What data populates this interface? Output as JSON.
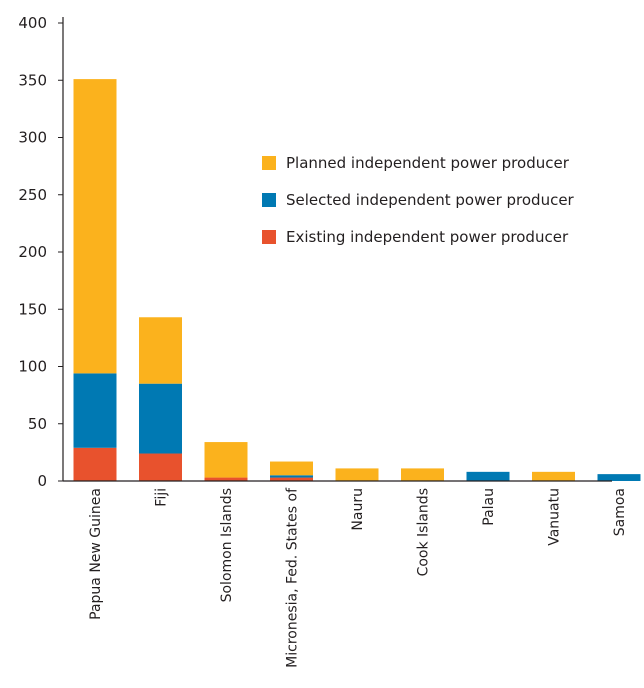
{
  "chart_data": {
    "type": "bar",
    "stacked": true,
    "categories": [
      "Papua New Guinea",
      "Fiji",
      "Solomon Islands",
      "Micronesia, Fed. States of",
      "Nauru",
      "Cook Islands",
      "Palau",
      "Vanuatu",
      "Samoa"
    ],
    "series": [
      {
        "name": "Existing independent power producer",
        "color": "#e8522d",
        "values": [
          29,
          24,
          3,
          3,
          0,
          0,
          0,
          0,
          0
        ]
      },
      {
        "name": "Selected independent power producer",
        "color": "#0079b3",
        "values": [
          65,
          61,
          0,
          2,
          0,
          0,
          8,
          0,
          6
        ]
      },
      {
        "name": "Planned independent power producer",
        "color": "#fbb21d",
        "values": [
          257,
          58,
          31,
          12,
          11,
          11,
          0,
          8,
          0
        ]
      }
    ],
    "legend_order": [
      "Planned independent power producer",
      "Selected independent power producer",
      "Existing independent power producer"
    ],
    "legend_position": "upper-right",
    "ylim": [
      0,
      400
    ],
    "yticks": [
      0,
      50,
      100,
      150,
      200,
      250,
      300,
      350,
      400
    ],
    "grid": false,
    "axis_color": "#231f20"
  }
}
